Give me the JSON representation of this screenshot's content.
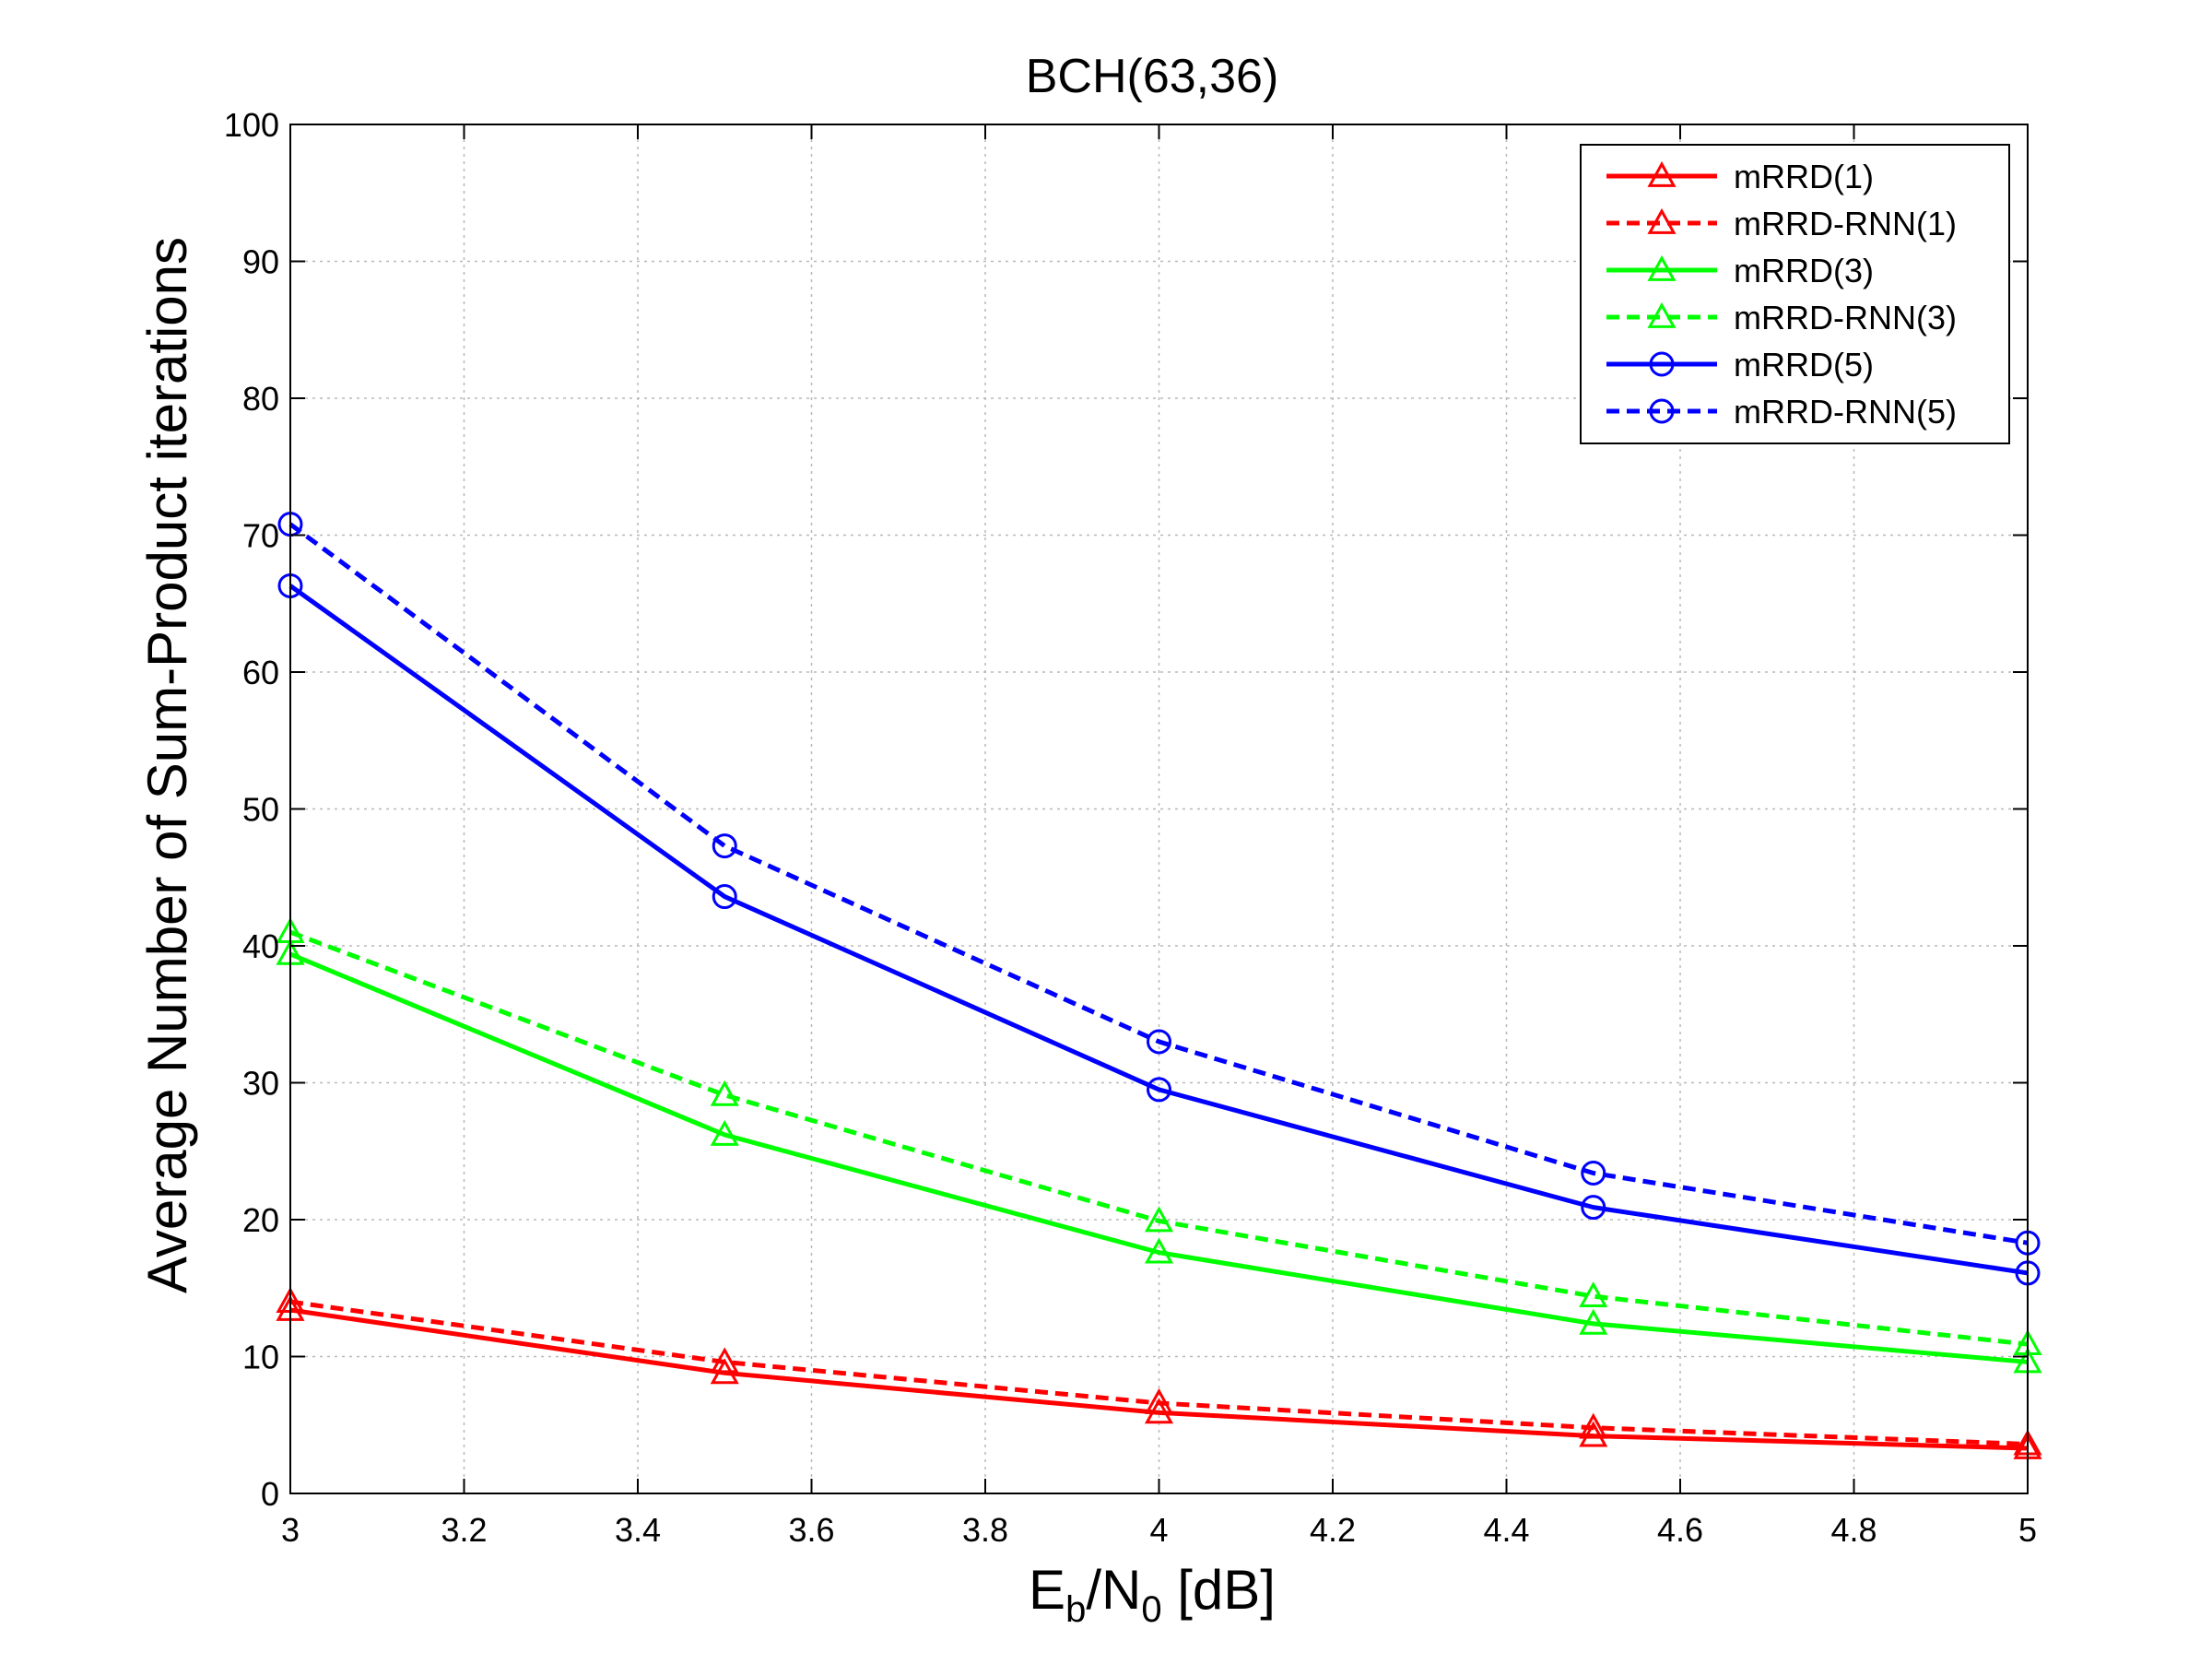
{
  "chart_data": {
    "type": "line",
    "title": "BCH(63,36)",
    "xlabel": {
      "main": "E",
      "sub1": "b",
      "mid": "/N",
      "sub2": "0",
      "tail": " [dB]"
    },
    "ylabel": "Average Number of Sum-Product iterations",
    "xlim": [
      3,
      5
    ],
    "ylim": [
      0,
      100
    ],
    "xticks": [
      3,
      3.2,
      3.4,
      3.6,
      3.8,
      4,
      4.2,
      4.4,
      4.6,
      4.8,
      5
    ],
    "xtick_labels": [
      "3",
      "3.2",
      "3.4",
      "3.6",
      "3.8",
      "4",
      "4.2",
      "4.4",
      "4.6",
      "4.8",
      "5"
    ],
    "yticks": [
      0,
      10,
      20,
      30,
      40,
      50,
      60,
      70,
      80,
      90,
      100
    ],
    "ytick_labels": [
      "0",
      "10",
      "20",
      "30",
      "40",
      "50",
      "60",
      "70",
      "80",
      "90",
      "100"
    ],
    "grid": true,
    "legend_position": "top-right",
    "x": [
      3,
      3.5,
      4,
      4.5,
      5
    ],
    "series": [
      {
        "name": "mRRD(1)",
        "color": "#ff0000",
        "dash": "solid",
        "marker": "triangle",
        "values": [
          13.4,
          8.8,
          5.9,
          4.2,
          3.3
        ]
      },
      {
        "name": "mRRD-RNN(1)",
        "color": "#ff0000",
        "dash": "dashed",
        "marker": "triangle",
        "values": [
          14.0,
          9.6,
          6.6,
          4.8,
          3.6
        ]
      },
      {
        "name": "mRRD(3)",
        "color": "#00ff00",
        "dash": "solid",
        "marker": "triangle",
        "values": [
          39.4,
          26.2,
          17.6,
          12.4,
          9.6
        ]
      },
      {
        "name": "mRRD-RNN(3)",
        "color": "#00ff00",
        "dash": "dashed",
        "marker": "triangle",
        "values": [
          41.0,
          29.1,
          19.9,
          14.4,
          10.9
        ]
      },
      {
        "name": "mRRD(5)",
        "color": "#0000ff",
        "dash": "solid",
        "marker": "circle",
        "values": [
          66.3,
          43.6,
          29.5,
          20.9,
          16.1
        ]
      },
      {
        "name": "mRRD-RNN(5)",
        "color": "#0000ff",
        "dash": "dashed",
        "marker": "circle",
        "values": [
          70.8,
          47.3,
          33.0,
          23.4,
          18.3
        ]
      }
    ]
  }
}
